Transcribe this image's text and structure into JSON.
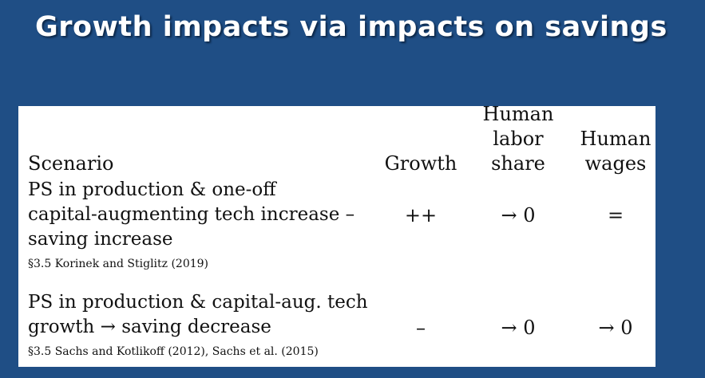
{
  "slide": {
    "title": "Growth impacts via impacts on savings"
  },
  "table": {
    "headers": {
      "scenario": "Scenario",
      "growth": "Growth",
      "labor_share": [
        "Human",
        "labor",
        "share"
      ],
      "wages": [
        "Human",
        "wages"
      ]
    },
    "rows": [
      {
        "scenario_lines": [
          "PS in production & one-off",
          "capital-augmenting tech increase –",
          "saving increase"
        ],
        "reference": "§3.5 Korinek and Stiglitz (2019)",
        "growth": "++",
        "labor_share": "→ 0",
        "wages": "="
      },
      {
        "scenario_lines": [
          "PS in production & capital-aug. tech",
          "growth → saving decrease"
        ],
        "reference": "§3.5 Sachs and Kotlikoff (2012), Sachs et al. (2015)",
        "growth": "–",
        "labor_share": "→ 0",
        "wages": "→ 0"
      }
    ]
  }
}
